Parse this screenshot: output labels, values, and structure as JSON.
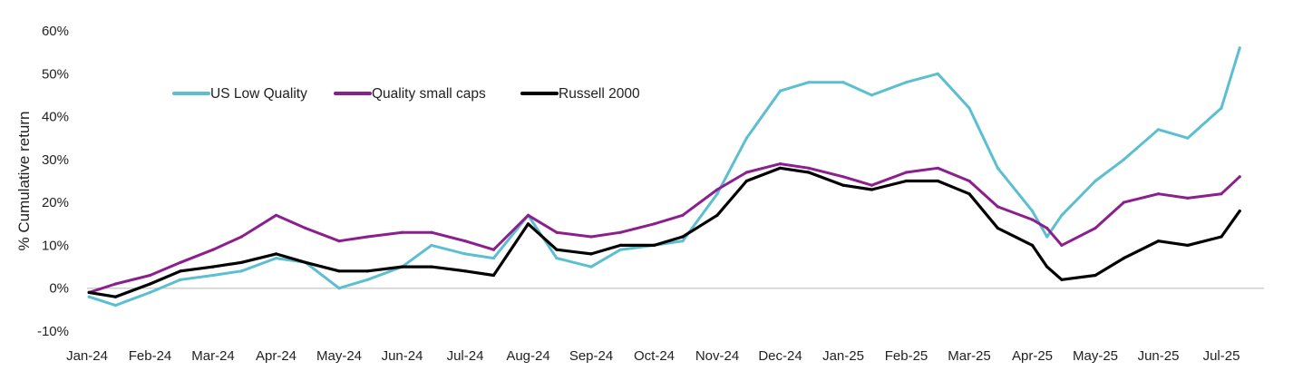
{
  "chart_data": {
    "type": "line",
    "title": "",
    "xlabel": "",
    "ylabel": "% Cumulative return",
    "ylim": [
      -10,
      60
    ],
    "yticks": [
      -10,
      0,
      10,
      20,
      30,
      40,
      50,
      60
    ],
    "ytick_labels": [
      "-10%",
      "0%",
      "10%",
      "20%",
      "30%",
      "40%",
      "50%",
      "60%"
    ],
    "x_tick_labels": [
      "Jan-24",
      "Feb-24",
      "Mar-24",
      "Apr-24",
      "May-24",
      "Jun-24",
      "Jul-24",
      "Aug-24",
      "Sep-24",
      "Oct-24",
      "Nov-24",
      "Dec-24",
      "Jan-25",
      "Feb-25",
      "Mar-25",
      "Apr-25",
      "May-25",
      "Jun-25",
      "Jul-25"
    ],
    "x": [
      "2024-01-02",
      "2024-01-15",
      "2024-02-01",
      "2024-02-15",
      "2024-03-01",
      "2024-03-15",
      "2024-04-01",
      "2024-04-15",
      "2024-05-01",
      "2024-05-15",
      "2024-06-01",
      "2024-06-15",
      "2024-07-01",
      "2024-07-15",
      "2024-08-01",
      "2024-08-15",
      "2024-09-01",
      "2024-09-15",
      "2024-10-01",
      "2024-10-15",
      "2024-11-01",
      "2024-11-15",
      "2024-12-01",
      "2024-12-15",
      "2025-01-01",
      "2025-01-15",
      "2025-02-01",
      "2025-02-15",
      "2025-03-01",
      "2025-03-15",
      "2025-04-01",
      "2025-04-08",
      "2025-04-15",
      "2025-05-01",
      "2025-05-15",
      "2025-06-01",
      "2025-06-15",
      "2025-07-01",
      "2025-07-10"
    ],
    "grid": false,
    "legend_position": "top-left",
    "series": [
      {
        "name": "US Low Quality",
        "color": "#5bbfd1",
        "values": [
          -2,
          -4,
          -1,
          2,
          3,
          4,
          7,
          6,
          0,
          2,
          5,
          10,
          8,
          7,
          17,
          7,
          5,
          9,
          10,
          11,
          22,
          35,
          46,
          48,
          48,
          45,
          48,
          50,
          42,
          28,
          18,
          12,
          17,
          25,
          30,
          37,
          35,
          42,
          56
        ]
      },
      {
        "name": "Quality small caps",
        "color": "#8b1f8e",
        "values": [
          -1,
          1,
          3,
          6,
          9,
          12,
          17,
          14,
          11,
          12,
          13,
          13,
          11,
          9,
          17,
          13,
          12,
          13,
          15,
          17,
          23,
          27,
          29,
          28,
          26,
          24,
          27,
          28,
          25,
          19,
          16,
          14,
          10,
          14,
          20,
          22,
          21,
          22,
          26
        ]
      },
      {
        "name": "Russell 2000",
        "color": "#000000",
        "values": [
          -1,
          -2,
          1,
          4,
          5,
          6,
          8,
          6,
          4,
          4,
          5,
          5,
          4,
          3,
          15,
          9,
          8,
          10,
          10,
          12,
          17,
          25,
          28,
          27,
          24,
          23,
          25,
          25,
          22,
          14,
          10,
          5,
          2,
          3,
          7,
          11,
          10,
          12,
          18
        ]
      }
    ]
  }
}
